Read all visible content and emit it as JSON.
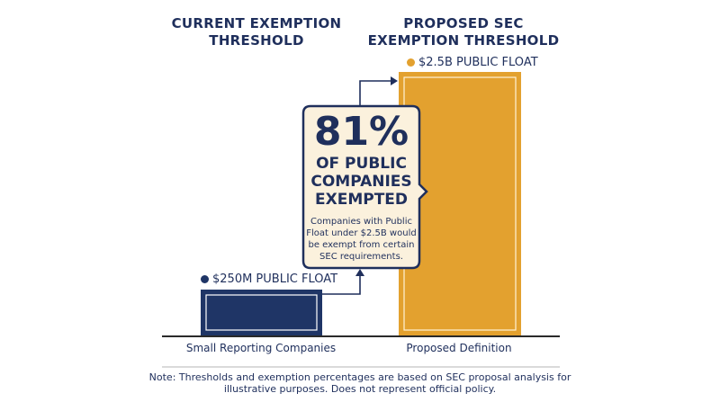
{
  "columns": {
    "left_title_line1": "CURRENT EXEMPTION",
    "left_title_line2": "THRESHOLD",
    "right_title_line1": "PROPOSED SEC",
    "right_title_line2": "EXEMPTION THRESHOLD"
  },
  "chart_data": {
    "type": "bar",
    "categories": [
      "Small Reporting Companies",
      "Proposed Definition"
    ],
    "values": [
      0.25,
      2.5
    ],
    "value_labels": [
      "$250M PUBLIC FLOAT",
      "$2.5B PUBLIC FLOAT"
    ],
    "unit": "billion USD",
    "ylim": [
      0,
      2.5
    ],
    "colors": [
      "#1f3566",
      "#e3a12f"
    ],
    "grid": false,
    "legend": "none"
  },
  "callout": {
    "percent": "81%",
    "line1": "OF PUBLIC",
    "line2": "COMPANIES",
    "line3": "EXEMPTED",
    "desc1": "Companies with Public",
    "desc2": "Float under $2.5B would",
    "desc3": "be exempt from certain",
    "desc4": "SEC requirements."
  },
  "note": {
    "line1": "Note: Thresholds and exemption percentages are based on SEC proposal analysis for",
    "line2": "illustrative purposes. Does not represent official policy."
  },
  "colors": {
    "navy": "#1f2f5c",
    "gold": "#e3a12f",
    "callout_bg": "#fbf1dd"
  }
}
